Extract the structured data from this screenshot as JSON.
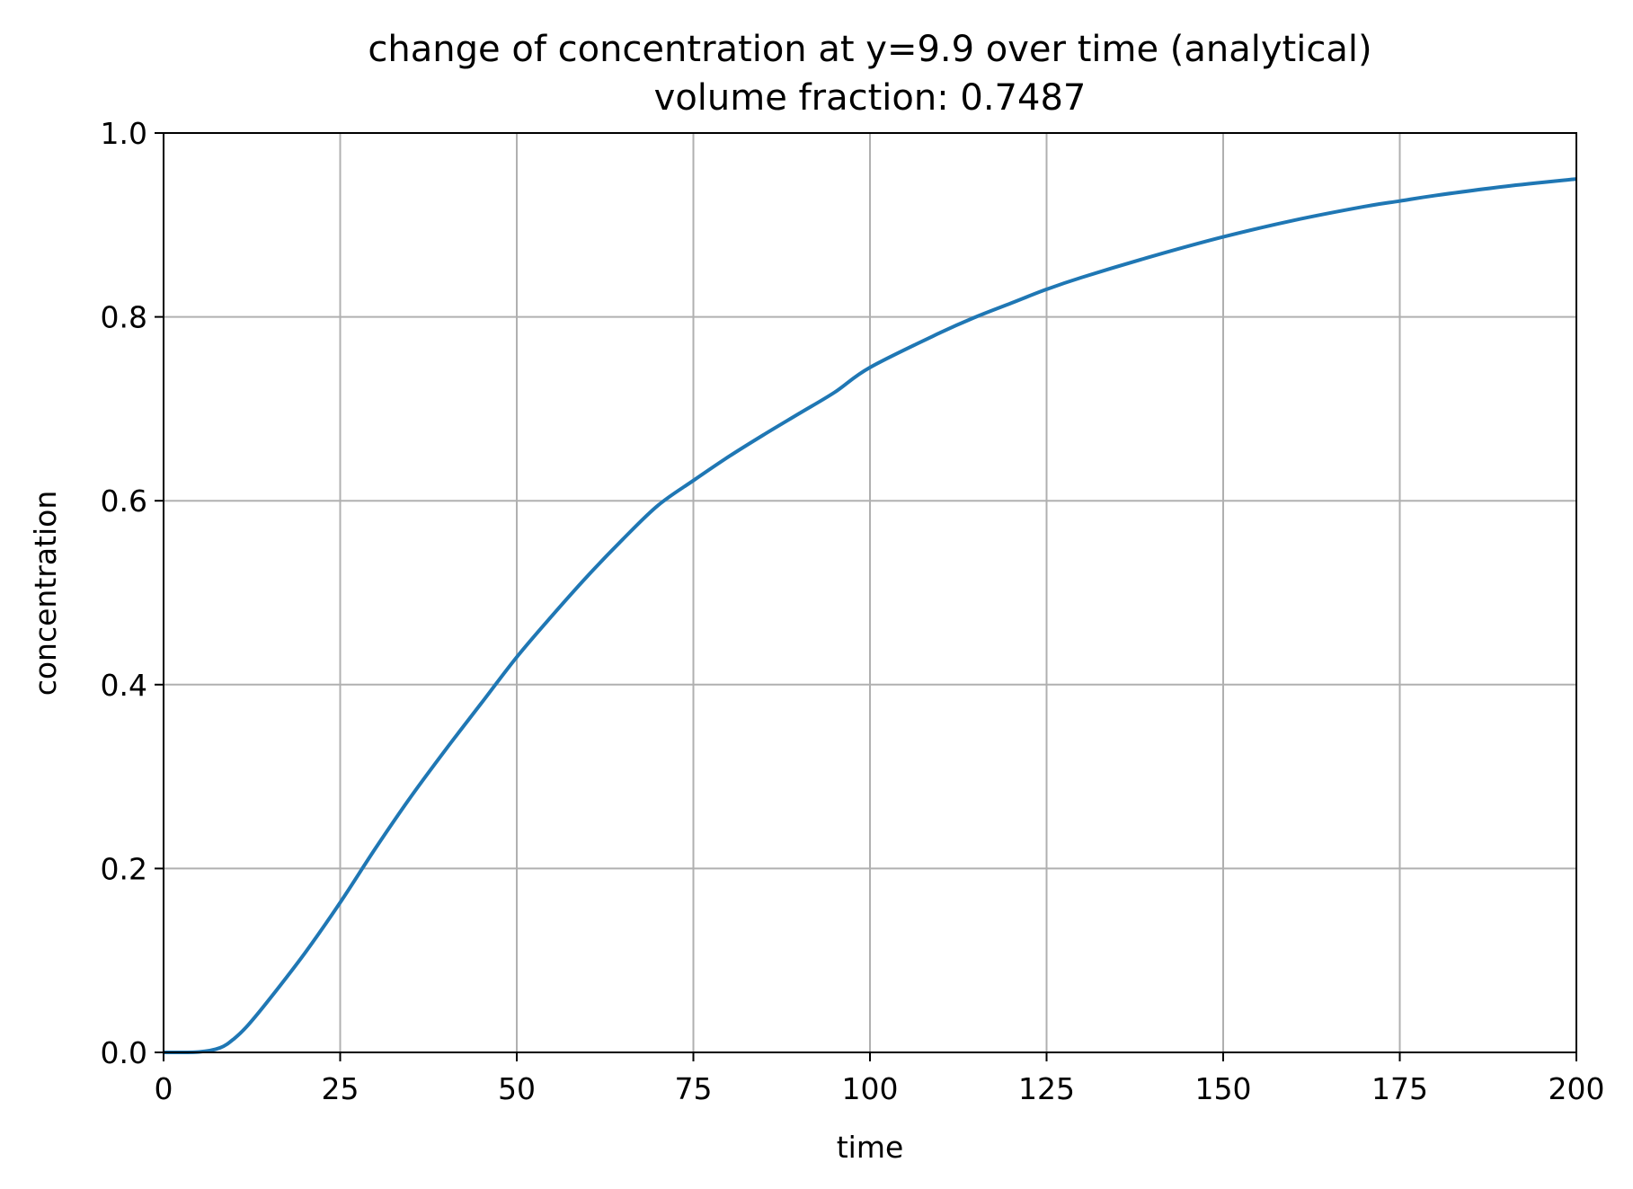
{
  "chart_data": {
    "type": "line",
    "title": "change of concentration at y=9.9 over time (analytical)",
    "subtitle": "volume fraction: 0.7487",
    "xlabel": "time",
    "ylabel": "concentration",
    "xlim": [
      0,
      200
    ],
    "ylim": [
      0,
      1.0
    ],
    "xticks": [
      "0",
      "25",
      "50",
      "75",
      "100",
      "125",
      "150",
      "175",
      "200"
    ],
    "yticks": [
      "0.0",
      "0.2",
      "0.4",
      "0.6",
      "0.8",
      "1.0"
    ],
    "grid": true,
    "series": [
      {
        "color": "#1f77b4",
        "x": [
          0,
          5,
          8,
          10,
          12,
          15,
          20,
          25,
          30,
          35,
          40,
          45,
          50,
          55,
          60,
          65,
          70,
          75,
          80,
          85,
          90,
          95,
          100,
          110,
          115,
          120,
          125,
          130,
          140,
          150,
          160,
          170,
          175,
          180,
          190,
          200
        ],
        "y": [
          0.0,
          0.0005,
          0.005,
          0.015,
          0.03,
          0.058,
          0.108,
          0.163,
          0.222,
          0.278,
          0.33,
          0.38,
          0.43,
          0.475,
          0.518,
          0.558,
          0.595,
          0.622,
          0.648,
          0.672,
          0.695,
          0.718,
          0.745,
          0.783,
          0.8,
          0.815,
          0.83,
          0.843,
          0.866,
          0.887,
          0.905,
          0.92,
          0.926,
          0.932,
          0.942,
          0.95
        ]
      }
    ]
  }
}
